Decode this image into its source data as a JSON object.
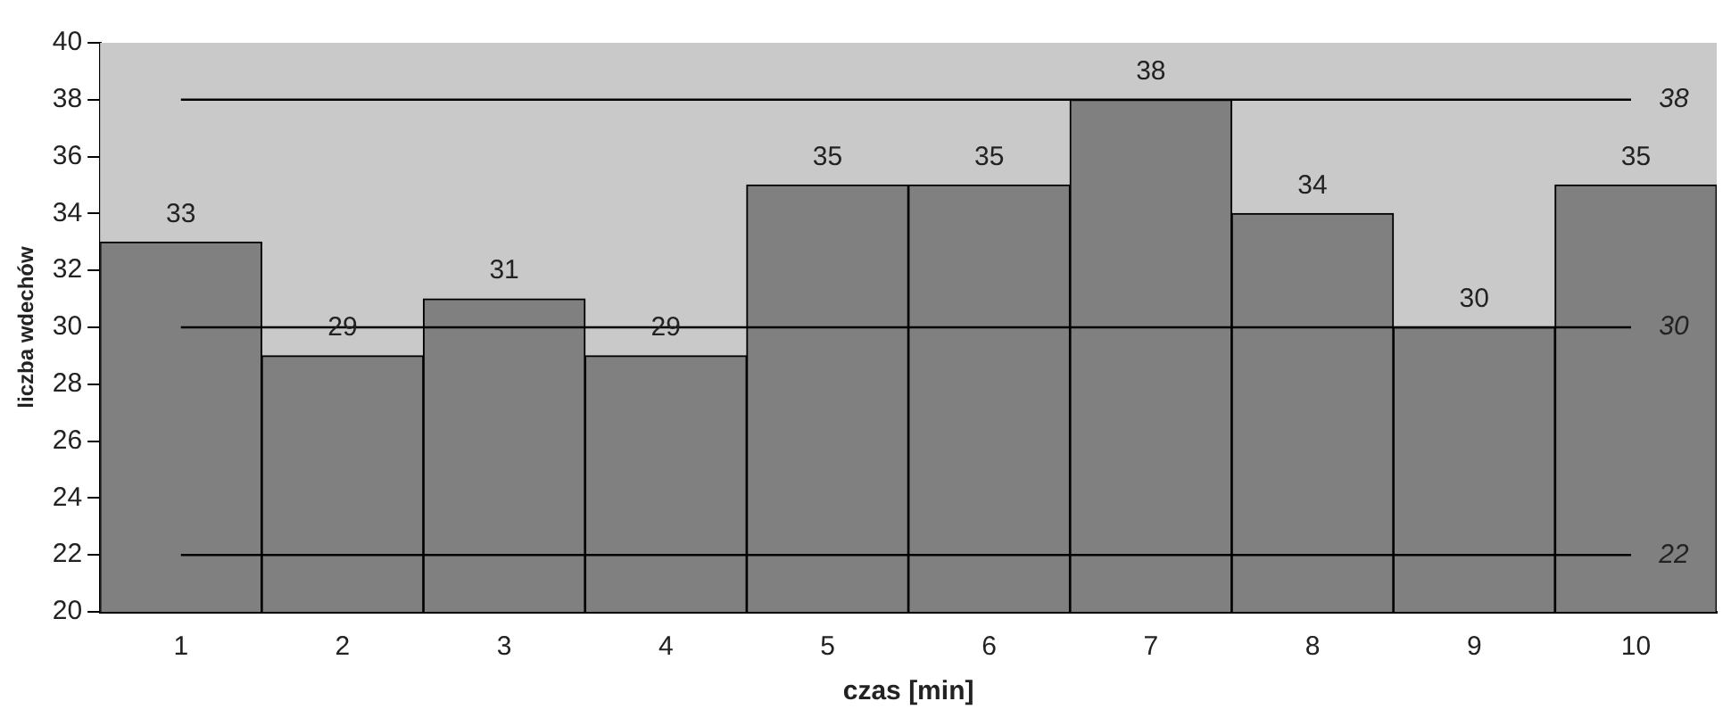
{
  "chart_data": {
    "type": "bar",
    "xlabel": "czas [min]",
    "ylabel": "liczba wdechów",
    "categories": [
      "1",
      "2",
      "3",
      "4",
      "5",
      "6",
      "7",
      "8",
      "9",
      "10"
    ],
    "values": [
      33,
      29,
      31,
      29,
      35,
      35,
      38,
      34,
      30,
      35
    ],
    "color": "#808080",
    "ylim": [
      20,
      40
    ],
    "yticks": [
      20,
      22,
      24,
      26,
      28,
      30,
      32,
      34,
      36,
      38,
      40
    ],
    "ref_lines": [
      {
        "axis": "y",
        "value": 38,
        "label": "38",
        "color": "#000000"
      },
      {
        "axis": "y",
        "value": 30,
        "label": "30",
        "color": "#000000"
      },
      {
        "axis": "y",
        "value": 22,
        "label": "22",
        "color": "#000000"
      }
    ],
    "data_labels": true,
    "grid": false,
    "legend": false
  }
}
